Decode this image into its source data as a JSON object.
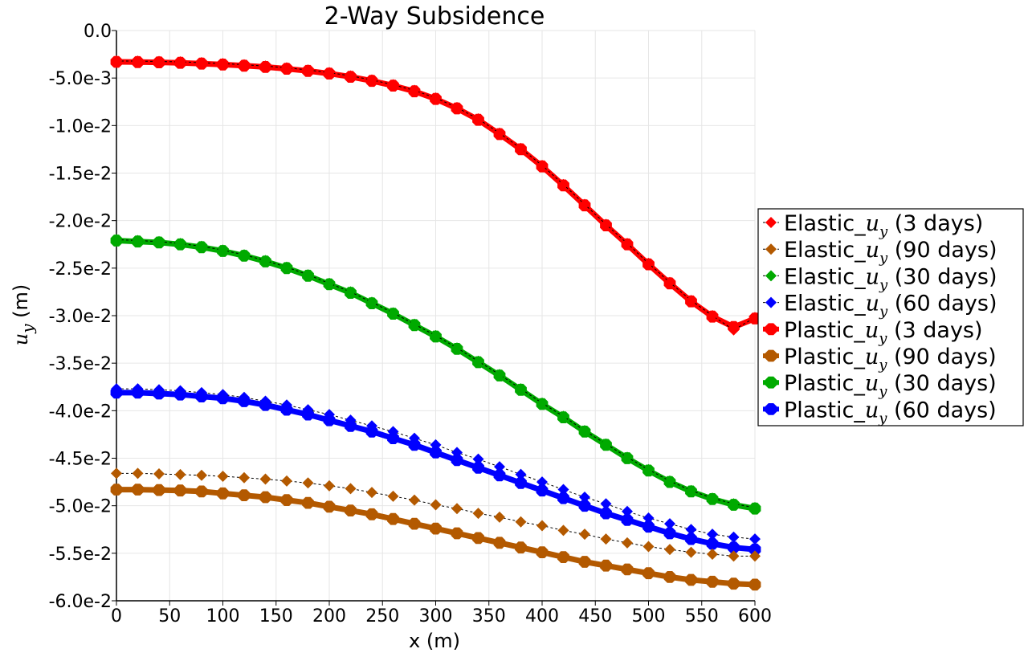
{
  "chart_data": {
    "type": "line",
    "title": "2-Way Subsidence",
    "xlabel": "x (m)",
    "ylabel": "u_y (m)",
    "xlim": [
      0,
      600
    ],
    "ylim": [
      -0.06,
      0.0
    ],
    "x_ticks": [
      0,
      50,
      100,
      150,
      200,
      250,
      300,
      350,
      400,
      450,
      500,
      550,
      600
    ],
    "y_ticks": [
      0.0,
      -0.005,
      -0.01,
      -0.015,
      -0.02,
      -0.025,
      -0.03,
      -0.035,
      -0.04,
      -0.045,
      -0.05,
      -0.055,
      -0.06
    ],
    "y_tick_labels": [
      "0.0",
      "-5.0e-3",
      "-1.0e-2",
      "-1.5e-2",
      "-2.0e-2",
      "-2.5e-2",
      "-3.0e-2",
      "-3.5e-2",
      "-4.0e-2",
      "-4.5e-2",
      "-5.0e-2",
      "-5.5e-2",
      "-6.0e-2"
    ],
    "grid": true,
    "legend_position": "right",
    "x": [
      0,
      20,
      40,
      60,
      80,
      100,
      120,
      140,
      160,
      180,
      200,
      220,
      240,
      260,
      280,
      300,
      320,
      340,
      360,
      380,
      400,
      420,
      440,
      460,
      480,
      500,
      520,
      540,
      560,
      580,
      600
    ],
    "series": [
      {
        "name": "Elastic_u_y (3 days)",
        "kind": "elastic",
        "color": "#ff0000",
        "values": [
          -0.0032,
          -0.00322,
          -0.00325,
          -0.0033,
          -0.00338,
          -0.00348,
          -0.0036,
          -0.00374,
          -0.00392,
          -0.00415,
          -0.00443,
          -0.00477,
          -0.0052,
          -0.0057,
          -0.0063,
          -0.0071,
          -0.0081,
          -0.0093,
          -0.0108,
          -0.0124,
          -0.0142,
          -0.0162,
          -0.0183,
          -0.0204,
          -0.0224,
          -0.0245,
          -0.0265,
          -0.0284,
          -0.03,
          -0.0315,
          -0.0302
        ]
      },
      {
        "name": "Elastic_u_y (90 days)",
        "kind": "elastic",
        "color": "#b35900",
        "values": [
          -0.0466,
          -0.0466,
          -0.04665,
          -0.04672,
          -0.0468,
          -0.0469,
          -0.04705,
          -0.0472,
          -0.0474,
          -0.0476,
          -0.0479,
          -0.0482,
          -0.0486,
          -0.049,
          -0.0494,
          -0.0499,
          -0.0503,
          -0.0508,
          -0.0512,
          -0.0517,
          -0.0521,
          -0.0526,
          -0.053,
          -0.0535,
          -0.0539,
          -0.0543,
          -0.0546,
          -0.0549,
          -0.0551,
          -0.0553,
          -0.0553
        ]
      },
      {
        "name": "Elastic_u_y (30 days)",
        "kind": "elastic",
        "color": "#00aa00",
        "values": [
          -0.022,
          -0.0221,
          -0.0222,
          -0.0224,
          -0.0227,
          -0.0231,
          -0.0236,
          -0.0242,
          -0.0249,
          -0.0257,
          -0.0266,
          -0.0275,
          -0.0286,
          -0.0297,
          -0.0309,
          -0.0321,
          -0.0334,
          -0.0348,
          -0.0362,
          -0.0377,
          -0.0392,
          -0.0406,
          -0.0421,
          -0.0435,
          -0.0449,
          -0.0462,
          -0.0474,
          -0.0484,
          -0.0492,
          -0.0498,
          -0.0502
        ]
      },
      {
        "name": "Elastic_u_y (60 days)",
        "kind": "elastic",
        "color": "#0000ff",
        "values": [
          -0.0377,
          -0.0377,
          -0.0378,
          -0.0379,
          -0.0381,
          -0.0383,
          -0.0386,
          -0.039,
          -0.0394,
          -0.0399,
          -0.0404,
          -0.041,
          -0.0416,
          -0.0422,
          -0.0429,
          -0.0436,
          -0.0444,
          -0.0451,
          -0.0459,
          -0.0467,
          -0.0475,
          -0.0483,
          -0.0491,
          -0.0498,
          -0.0506,
          -0.0513,
          -0.0519,
          -0.0525,
          -0.053,
          -0.0533,
          -0.0535
        ]
      },
      {
        "name": "Plastic_u_y (3 days)",
        "kind": "plastic",
        "color": "#ff0000",
        "values": [
          -0.0033,
          -0.00332,
          -0.00335,
          -0.0034,
          -0.00348,
          -0.00358,
          -0.0037,
          -0.00384,
          -0.00402,
          -0.00425,
          -0.00453,
          -0.00487,
          -0.0053,
          -0.0058,
          -0.0064,
          -0.0072,
          -0.0082,
          -0.0094,
          -0.0109,
          -0.0125,
          -0.0143,
          -0.0163,
          -0.0184,
          -0.0205,
          -0.0225,
          -0.0246,
          -0.0266,
          -0.0285,
          -0.0301,
          -0.0312,
          -0.0303
        ]
      },
      {
        "name": "Plastic_u_y (90 days)",
        "kind": "plastic",
        "color": "#b35900",
        "values": [
          -0.0483,
          -0.0483,
          -0.04835,
          -0.0484,
          -0.0485,
          -0.0487,
          -0.0489,
          -0.0491,
          -0.0494,
          -0.0497,
          -0.0501,
          -0.0505,
          -0.0509,
          -0.0514,
          -0.0519,
          -0.0524,
          -0.0529,
          -0.0534,
          -0.0539,
          -0.0544,
          -0.0549,
          -0.0554,
          -0.0559,
          -0.0563,
          -0.0567,
          -0.0571,
          -0.0575,
          -0.0578,
          -0.058,
          -0.0582,
          -0.0583
        ]
      },
      {
        "name": "Plastic_u_y (30 days)",
        "kind": "plastic",
        "color": "#00aa00",
        "values": [
          -0.0221,
          -0.0222,
          -0.0223,
          -0.0225,
          -0.0228,
          -0.0232,
          -0.0237,
          -0.0243,
          -0.025,
          -0.0258,
          -0.0267,
          -0.0276,
          -0.0287,
          -0.0298,
          -0.031,
          -0.0322,
          -0.0335,
          -0.0349,
          -0.0363,
          -0.0378,
          -0.0393,
          -0.0407,
          -0.0422,
          -0.0436,
          -0.045,
          -0.0463,
          -0.0475,
          -0.0485,
          -0.0493,
          -0.0499,
          -0.0503
        ]
      },
      {
        "name": "Plastic_u_y (60 days)",
        "kind": "plastic",
        "color": "#0000ff",
        "values": [
          -0.0381,
          -0.0381,
          -0.0382,
          -0.0383,
          -0.0385,
          -0.0387,
          -0.039,
          -0.0394,
          -0.0399,
          -0.0404,
          -0.041,
          -0.0416,
          -0.0422,
          -0.0429,
          -0.0436,
          -0.0444,
          -0.0452,
          -0.046,
          -0.0468,
          -0.0476,
          -0.0484,
          -0.0492,
          -0.05,
          -0.0508,
          -0.0515,
          -0.0522,
          -0.0529,
          -0.0535,
          -0.054,
          -0.0544,
          -0.0546
        ]
      }
    ]
  },
  "legend": {
    "items": [
      {
        "prefix": "Elastic_",
        "var": "u",
        "sub": "y",
        "suffix": " (3 days)",
        "kind": "elastic",
        "color": "#ff0000"
      },
      {
        "prefix": "Elastic_",
        "var": "u",
        "sub": "y",
        "suffix": " (90 days)",
        "kind": "elastic",
        "color": "#b35900"
      },
      {
        "prefix": "Elastic_",
        "var": "u",
        "sub": "y",
        "suffix": " (30 days)",
        "kind": "elastic",
        "color": "#00aa00"
      },
      {
        "prefix": "Elastic_",
        "var": "u",
        "sub": "y",
        "suffix": " (60 days)",
        "kind": "elastic",
        "color": "#0000ff"
      },
      {
        "prefix": "Plastic_",
        "var": "u",
        "sub": "y",
        "suffix": " (3 days)",
        "kind": "plastic",
        "color": "#ff0000"
      },
      {
        "prefix": "Plastic_",
        "var": "u",
        "sub": "y",
        "suffix": " (90 days)",
        "kind": "plastic",
        "color": "#b35900"
      },
      {
        "prefix": "Plastic_",
        "var": "u",
        "sub": "y",
        "suffix": " (30 days)",
        "kind": "plastic",
        "color": "#00aa00"
      },
      {
        "prefix": "Plastic_",
        "var": "u",
        "sub": "y",
        "suffix": " (60 days)",
        "kind": "plastic",
        "color": "#0000ff"
      }
    ]
  },
  "ylabel_parts": {
    "var": "u",
    "sub": "y",
    "unit": " (m)"
  }
}
